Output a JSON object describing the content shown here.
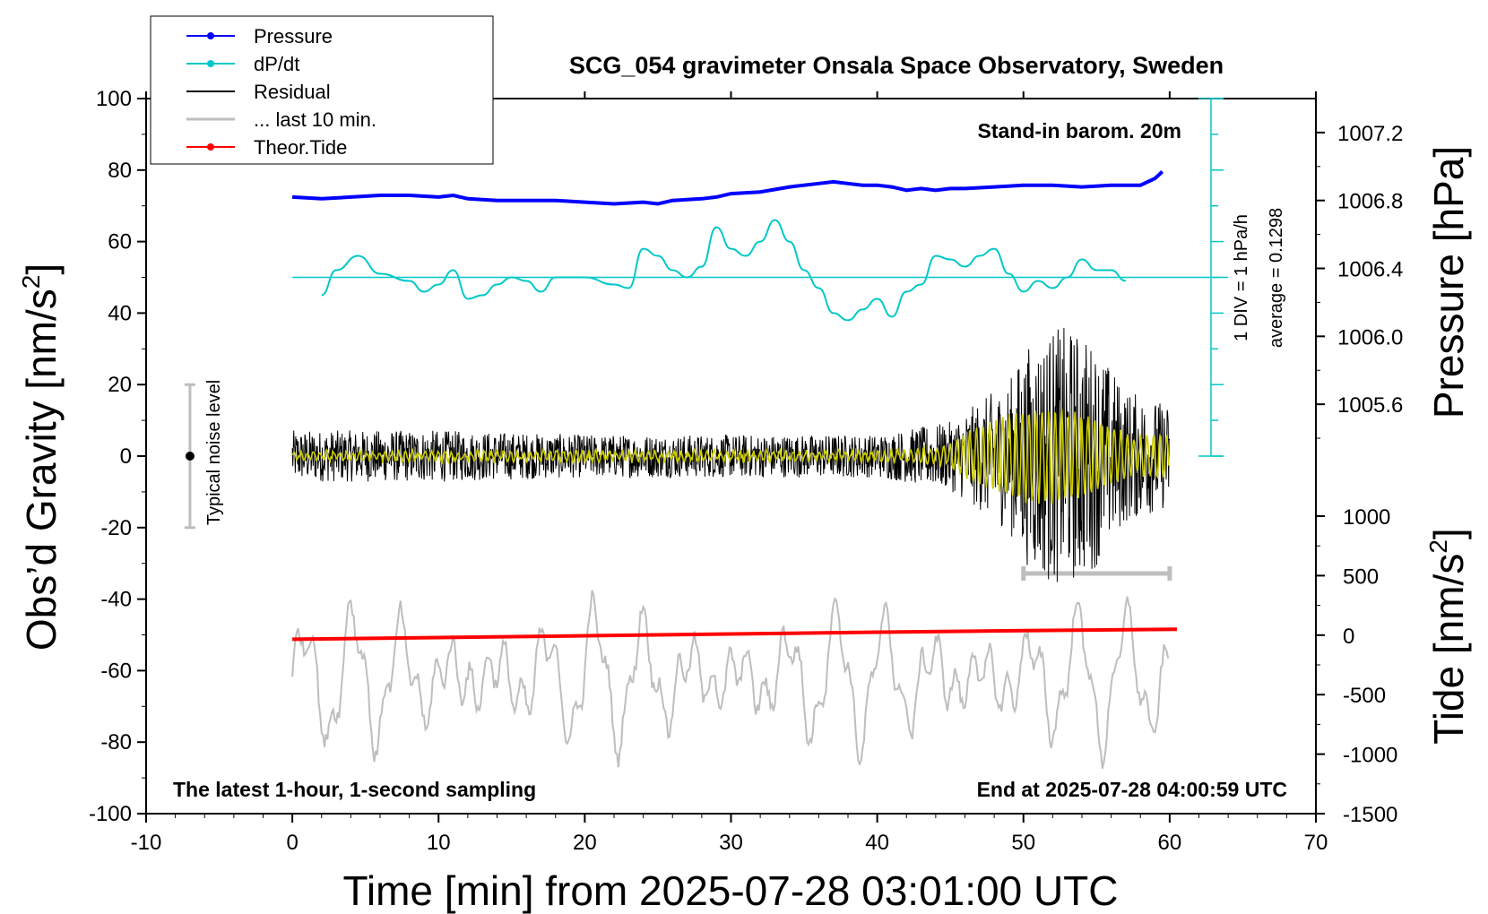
{
  "chart_data": {
    "type": "line",
    "title": "SCG_054 gravimeter Onsala Space Observatory, Sweden",
    "xlabel": "Time [min] from 2025-07-28 03:01:00 UTC",
    "ylabel_left": "Obs’d Gravity [nm/s²]",
    "ylabel_left_base": "Obs’d Gravity [nm/s",
    "ylabel_left_sup": "2",
    "ylabel_left_close": "]",
    "ylabel_right_pressure": "Pressure [hPa]",
    "ylabel_right_tide": "Tide [nm/s²]",
    "ylabel_right_tide_base": "Tide [nm/s",
    "ylabel_right_tide_sup": "2",
    "ylabel_right_tide_close": "]",
    "xlim": [
      -10,
      70
    ],
    "ylim_left": [
      -100,
      100
    ],
    "pressure_range": [
      1005.3,
      1007.4
    ],
    "tide_range": [
      -1500,
      1000
    ],
    "x_ticks": [
      -10,
      0,
      10,
      20,
      30,
      40,
      50,
      60,
      70
    ],
    "y_ticks_left": [
      -100,
      -80,
      -60,
      -40,
      -20,
      0,
      20,
      40,
      60,
      80,
      100
    ],
    "pressure_ticks": [
      "1005.6",
      "1006.0",
      "1006.4",
      "1006.8",
      "1007.2"
    ],
    "pressure_tick_values": [
      1005.6,
      1006.0,
      1006.4,
      1006.8,
      1007.2
    ],
    "tide_ticks": [
      "-1500",
      "-1000",
      "-500",
      "0",
      "500",
      "1000"
    ],
    "tide_tick_values": [
      -1500,
      -1000,
      -500,
      0,
      500,
      1000
    ],
    "legend_position": "top-left",
    "legend": [
      {
        "label": "Pressure",
        "color": "#0000ff",
        "marker": true
      },
      {
        "label": "dP/dt",
        "color": "#00c8c8",
        "marker": true
      },
      {
        "label": "Residual",
        "color": "#000000",
        "marker": false
      },
      {
        "label": "... last 10 min.",
        "color": "#bebebe",
        "marker": false
      },
      {
        "label": "Theor.Tide",
        "color": "#ff0000",
        "marker": true
      }
    ],
    "annotations": {
      "stand_in": "Stand-in barom. 20m",
      "latest": "The latest 1-hour, 1-second sampling",
      "end_at": "End at 2025-07-28 04:00:59 UTC",
      "noise": "Typical noise level",
      "dpdt_scale": "1 DIV = 1 hPa/h",
      "dpdt_avg": "average = 0.1298"
    },
    "noise_bar": {
      "x": -7,
      "low": -20,
      "high": 20
    },
    "last10_bar": {
      "x_start": 50,
      "x_end": 60
    },
    "series": [
      {
        "name": "Pressure",
        "color": "#0000ff",
        "axis": "pressure",
        "x": [
          0,
          2,
          4,
          6,
          8,
          10,
          11,
          12,
          14,
          16,
          18,
          20,
          22,
          24,
          25,
          26,
          28,
          29,
          30,
          32,
          34,
          36,
          37,
          38,
          39,
          40,
          41,
          42,
          43,
          44,
          45,
          46,
          48,
          50,
          52,
          54,
          56,
          58,
          59,
          59.5
        ],
        "values": [
          1006.82,
          1006.81,
          1006.82,
          1006.83,
          1006.83,
          1006.82,
          1006.83,
          1006.81,
          1006.8,
          1006.8,
          1006.8,
          1006.79,
          1006.78,
          1006.79,
          1006.78,
          1006.8,
          1006.81,
          1006.82,
          1006.84,
          1006.85,
          1006.88,
          1006.9,
          1006.91,
          1006.9,
          1006.89,
          1006.89,
          1006.88,
          1006.86,
          1006.87,
          1006.86,
          1006.87,
          1006.87,
          1006.88,
          1006.89,
          1006.89,
          1006.88,
          1006.89,
          1006.89,
          1006.93,
          1006.97
        ]
      },
      {
        "name": "dP/dt",
        "color": "#00c8c8",
        "axis": "left",
        "x": [
          2,
          3,
          4.5,
          6,
          8,
          9,
          10,
          11,
          12,
          13,
          14,
          15,
          16,
          17,
          18,
          20,
          22,
          23,
          24,
          25,
          26,
          27,
          28,
          29,
          30,
          31,
          32,
          33,
          34,
          35,
          36,
          37,
          38,
          39,
          40,
          41,
          42,
          43,
          44,
          45,
          46,
          47,
          48,
          49,
          50,
          51,
          52,
          53,
          54,
          55,
          56,
          57
        ],
        "values": [
          45,
          52,
          56,
          51,
          49,
          46,
          48,
          52,
          44,
          45,
          48,
          50,
          49,
          46,
          50,
          50,
          48,
          47,
          58,
          56,
          52,
          50,
          53,
          64,
          58,
          56,
          60,
          66,
          60,
          52,
          47,
          40,
          38,
          41,
          44,
          39,
          46,
          48,
          56,
          55,
          53,
          56,
          58,
          51,
          46,
          49,
          47,
          50,
          55,
          52,
          52,
          49
        ]
      },
      {
        "name": "Theor.Tide",
        "color": "#ff0000",
        "axis": "tide",
        "x": [
          0,
          10,
          20,
          30,
          40,
          50,
          60.5
        ],
        "values": [
          -35,
          -20,
          -5,
          10,
          25,
          38,
          50
        ]
      }
    ],
    "residual_description_levels": {
      "x_segments": [
        0,
        10,
        20,
        30,
        40,
        45,
        50,
        55,
        60
      ],
      "amplitude": [
        6,
        6,
        5,
        5,
        5,
        8,
        20,
        18,
        12
      ]
    }
  }
}
